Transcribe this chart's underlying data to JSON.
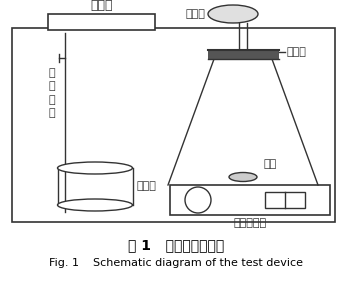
{
  "title_cn": "图 1   实验装置示意图",
  "title_en": "Fig. 1    Schematic diagram of the test device",
  "labels": {
    "wenkongyi": "温控仪",
    "wenkong_probe": "温\n控\n探\n头",
    "nitrogen_bag": "氮气袋",
    "sample_port": "取样口",
    "rotor": "转子",
    "heater": "加热器",
    "magnetic_stirrer": "磁力搅拌器"
  },
  "bg_color": "#ffffff",
  "line_color": "#333333",
  "font_size_cn": 9,
  "font_size_en": 8
}
